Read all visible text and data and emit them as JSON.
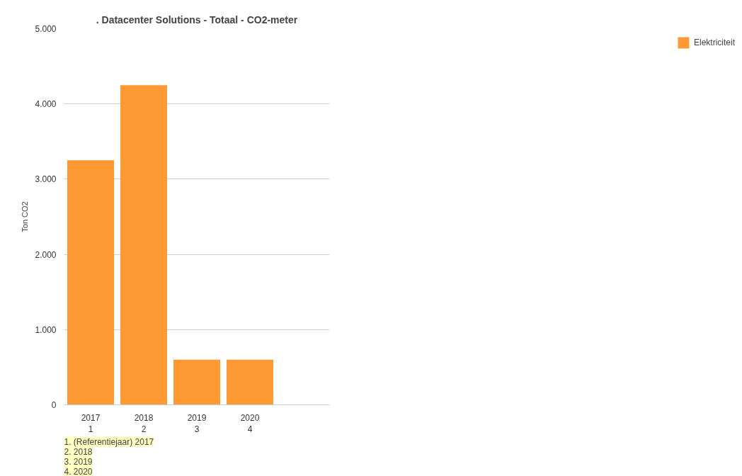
{
  "chart_data": {
    "type": "bar",
    "title": ". Datacenter Solutions - Totaal - CO2-meter",
    "ylabel": "Ton CO2",
    "categories": [
      "2017\n1",
      "2018\n2",
      "2019\n3",
      "2020\n4",
      null
    ],
    "series": [
      {
        "name": "Elektriciteit",
        "color": "#ff9933",
        "values": [
          3250,
          4250,
          600,
          600,
          null
        ]
      }
    ],
    "ylim": [
      0,
      5000
    ],
    "yticks": [
      {
        "value": 0,
        "label": "0"
      },
      {
        "value": 1000,
        "label": "1.000"
      },
      {
        "value": 2000,
        "label": "2.000"
      },
      {
        "value": 3000,
        "label": "3.000"
      },
      {
        "value": 4000,
        "label": "4.000"
      },
      {
        "value": 5000,
        "label": "5.000"
      }
    ],
    "grid": "y",
    "legend": "right",
    "annotations": [
      "1. (Referentiejaar) 2017",
      "2. 2018",
      "3. 2019",
      "4. 2020"
    ]
  }
}
